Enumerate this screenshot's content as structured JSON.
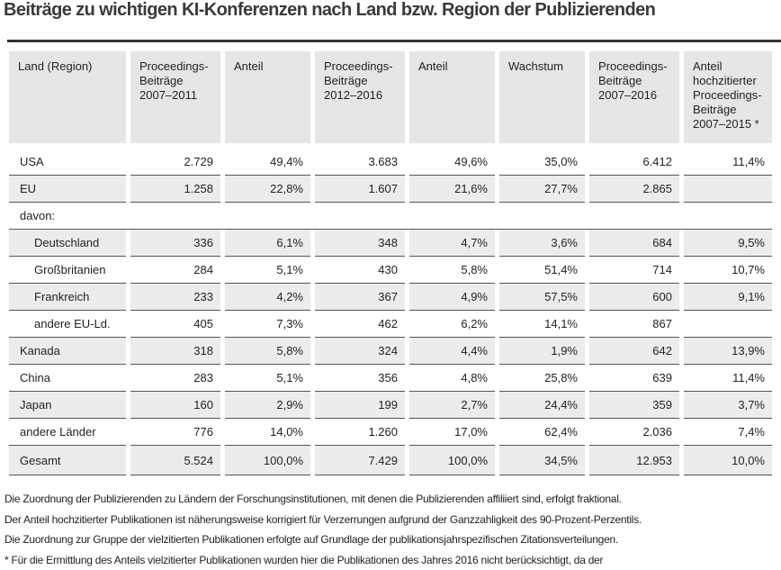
{
  "title": "Beiträge zu wichtigen KI-Konferenzen nach Land bzw. Region der Publizierenden",
  "table": {
    "header": [
      "Land (Region)",
      "Proceedings-\nBeiträge\n2007–2011",
      "Anteil",
      "Proceedings-\nBeiträge\n2012–2016",
      "Anteil",
      "Wachstum",
      "Proceedings-\nBeiträge\n2007–2016",
      "Anteil\nhochzitierter\nProceedings-\nBeiträge\n2007–2015 *"
    ],
    "rows": [
      [
        "USA",
        "2.729",
        "49,4%",
        "3.683",
        "49,6%",
        "35,0%",
        "6.412",
        "11,4%"
      ],
      [
        "EU",
        "1.258",
        "22,8%",
        "1.607",
        "21,6%",
        "27,7%",
        "2.865",
        null
      ],
      [
        "davon:"
      ],
      [
        "Deutschland",
        "336",
        "6,1%",
        "348",
        "4,7%",
        "3,6%",
        "684",
        "9,5%"
      ],
      [
        "Großbritanien",
        "284",
        "5,1%",
        "430",
        "5,8%",
        "51,4%",
        "714",
        "10,7%"
      ],
      [
        "Frankreich",
        "233",
        "4,2%",
        "367",
        "4,9%",
        "57,5%",
        "600",
        "9,1%"
      ],
      [
        "andere EU-Ld.",
        "405",
        "7,3%",
        "462",
        "6,2%",
        "14,1%",
        "867",
        null
      ],
      [
        "Kanada",
        "318",
        "5,8%",
        "324",
        "4,4%",
        "1,9%",
        "642",
        "13,9%"
      ],
      [
        "China",
        "283",
        "5,1%",
        "356",
        "4,8%",
        "25,8%",
        "639",
        "11,4%"
      ],
      [
        "Japan",
        "160",
        "2,9%",
        "199",
        "2,7%",
        "24,4%",
        "359",
        "3,7%"
      ],
      [
        "andere Länder",
        "776",
        "14,0%",
        "1.260",
        "17,0%",
        "62,4%",
        "2.036",
        "7,4%"
      ],
      [
        "Gesamt",
        "5.524",
        "100,0%",
        "7.429",
        "100,0%",
        "34,5%",
        "12.953",
        "10,0%"
      ]
    ]
  },
  "notes": [
    "Die Zuordnung der Publizierenden zu Ländern der Forschungsinstitutionen, mit denen die Publizierenden affiliiert sind, erfolgt fraktional.",
    "Der Anteil hochzitierter Publikationen ist näherungsweise korrigiert für Verzerrungen aufgrund der Ganzzahligkeit des 90-Prozent-Perzentils.",
    "Die Zuordnung zur Gruppe der vielzitierten Publikationen erfolgte auf Grundlage der publikationsjahrspezifischen Zitationsverteilungen.",
    "* Für die Ermittlung des Anteils vielzitierter Publikationen wurden hier die Publikationen des Jahres 2016 nicht berücksichtigt, da der"
  ]
}
